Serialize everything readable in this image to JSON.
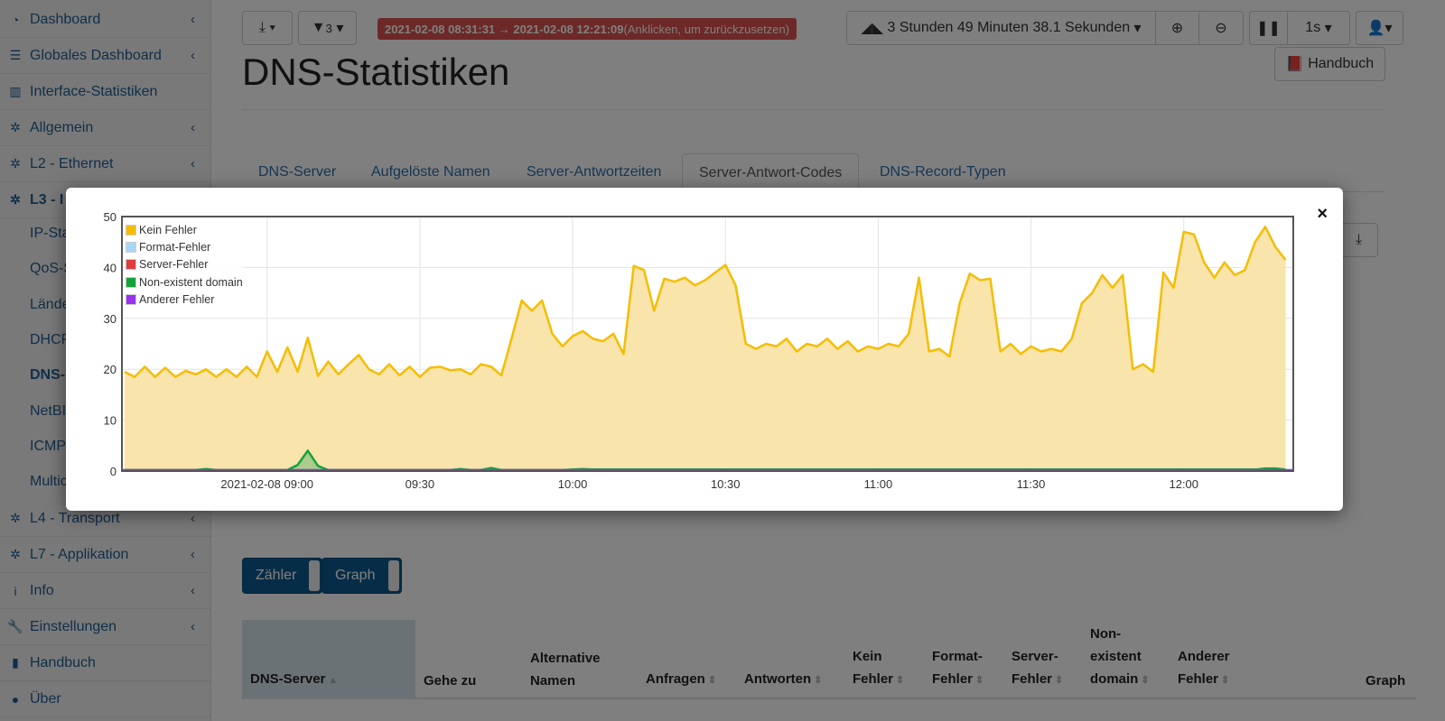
{
  "sidebar": {
    "items": [
      {
        "label": "Dashboard",
        "icon": "dashboard-icon",
        "chev": true
      },
      {
        "label": "Globales Dashboard",
        "icon": "server-icon",
        "chev": true
      },
      {
        "label": "Interface-Statistiken",
        "icon": "bar-chart-icon",
        "chev": false
      },
      {
        "label": "Allgemein",
        "icon": "gear-icon",
        "chev": true
      },
      {
        "label": "L2 - Ethernet",
        "icon": "gear-icon",
        "chev": true
      },
      {
        "label": "L3 - I",
        "icon": "gear-icon",
        "chev": false
      },
      {
        "label": "L4 - Transport",
        "icon": "gear-icon",
        "chev": true
      },
      {
        "label": "L7 - Applikation",
        "icon": "gear-icon",
        "chev": true
      },
      {
        "label": "Info",
        "icon": "info-icon",
        "chev": true
      },
      {
        "label": "Einstellungen",
        "icon": "wrench-icon",
        "chev": true
      },
      {
        "label": "Handbuch",
        "icon": "book-icon",
        "chev": false
      },
      {
        "label": "Über",
        "icon": "info-circle-icon",
        "chev": false
      }
    ],
    "subitems": [
      "IP-Sta",
      "QoS-S",
      "Lände",
      "DHCP",
      "DNS-",
      "NetBI",
      "ICMP",
      "Multic"
    ]
  },
  "toolbar": {
    "filter_count": "3",
    "range": "2021-02-08 08:31:31 → 2021-02-08 12:21:09",
    "range_hint": "(Anklicken, um zurückzusetzen)",
    "duration": "3 Stunden 49 Minuten 38.1 Sekunden",
    "refresh": "1s"
  },
  "page": {
    "title": "DNS-Statistiken",
    "manual": "Handbuch"
  },
  "tabs": [
    "DNS-Server",
    "Aufgelöste Namen",
    "Server-Antwortzeiten",
    "Server-Antwort-Codes",
    "DNS-Record-Typen"
  ],
  "toggles": [
    "Zähler",
    "Graph"
  ],
  "table": {
    "headers": [
      "DNS-Server",
      "Gehe zu",
      "Alternative Namen",
      "Anfragen",
      "Antworten",
      "Kein Fehler",
      "Format-Fehler",
      "Server-Fehler",
      "Non-existent domain",
      "Anderer Fehler",
      "Graph"
    ]
  },
  "modal": {
    "close": "×"
  },
  "chart_data": {
    "type": "area",
    "ylim": [
      0,
      50
    ],
    "yticks": [
      "0",
      "10",
      "20",
      "30",
      "40",
      "50"
    ],
    "xlabels": [
      {
        "t": 60,
        "label": "2021-02-08 09:00"
      },
      {
        "t": 90,
        "label": "09:30"
      },
      {
        "t": 120,
        "label": "10:00"
      },
      {
        "t": 150,
        "label": "10:30"
      },
      {
        "t": 180,
        "label": "11:00"
      },
      {
        "t": 210,
        "label": "11:30"
      },
      {
        "t": 240,
        "label": "12:00"
      }
    ],
    "x_range_minutes_after_0800": [
      31.5,
      261.5
    ],
    "x_start": 32,
    "x_step": 2,
    "legend_position": "top-left",
    "series": [
      {
        "name": "Kein Fehler",
        "color": "#f5bd00",
        "fill": "#f9e3a6",
        "values": [
          19.5,
          18.5,
          20.5,
          18.5,
          20.3,
          18.5,
          19.7,
          19,
          20,
          18.5,
          20,
          18.5,
          20.5,
          18.5,
          23.5,
          19.5,
          24.3,
          19.5,
          26.2,
          18.7,
          21.5,
          19,
          21,
          22.8,
          20,
          19,
          21,
          18.8,
          20.5,
          18.5,
          20.3,
          20.5,
          19.8,
          20,
          19,
          21,
          20.5,
          18.8,
          26,
          33.5,
          31.5,
          33.5,
          27,
          24.5,
          26.5,
          27.5,
          26,
          25.5,
          27,
          23,
          40.3,
          39.5,
          31.5,
          37.8,
          37.2,
          38,
          36.5,
          37.5,
          39,
          40.5,
          36.5,
          25,
          24,
          25,
          24.5,
          26,
          23.5,
          25,
          24.5,
          26,
          24,
          25.5,
          23.5,
          24.5,
          24,
          25,
          24.5,
          27,
          38,
          23.5,
          24,
          22.5,
          33,
          38.8,
          37.5,
          37.8,
          23.5,
          25,
          23,
          24.5,
          23.5,
          24,
          23.5,
          26,
          33,
          35,
          38.5,
          36,
          38.5,
          20,
          21,
          19.5,
          39,
          36,
          47,
          46.5,
          41,
          38,
          41,
          38.5,
          39.5,
          45,
          48,
          44,
          41.5
        ]
      },
      {
        "name": "Format-Fehler",
        "color": "#a8d8f5",
        "values": []
      },
      {
        "name": "Server-Fehler",
        "color": "#e03c3c",
        "values": []
      },
      {
        "name": "Non-existent domain",
        "color": "#13a33a",
        "fill": "#a8c98a",
        "values": [
          0.2,
          0.2,
          0.2,
          0.2,
          0.2,
          0.2,
          0.2,
          0.2,
          0.4,
          0.2,
          0.2,
          0.2,
          0.2,
          0.2,
          0.2,
          0.2,
          0.2,
          1.2,
          4,
          1,
          0.2,
          0.2,
          0.2,
          0.2,
          0.2,
          0.2,
          0.2,
          0.2,
          0.2,
          0.2,
          0.2,
          0.2,
          0.2,
          0.4,
          0.2,
          0.2,
          0.6,
          0.2,
          0.2,
          0.2,
          0.2,
          0.2,
          0.2,
          0.2,
          0.3,
          0.4,
          0.3,
          0.3,
          0.3,
          0.3,
          0.3,
          0.3,
          0.3,
          0.3,
          0.3,
          0.3,
          0.3,
          0.3,
          0.3,
          0.3,
          0.3,
          0.3,
          0.3,
          0.3,
          0.3,
          0.3,
          0.3,
          0.3,
          0.3,
          0.3,
          0.3,
          0.3,
          0.3,
          0.3,
          0.3,
          0.3,
          0.3,
          0.3,
          0.3,
          0.3,
          0.3,
          0.3,
          0.3,
          0.3,
          0.3,
          0.3,
          0.3,
          0.3,
          0.3,
          0.3,
          0.3,
          0.3,
          0.3,
          0.3,
          0.3,
          0.3,
          0.3,
          0.3,
          0.3,
          0.3,
          0.3,
          0.3,
          0.3,
          0.3,
          0.3,
          0.3,
          0.3,
          0.3,
          0.3,
          0.3,
          0.3,
          0.3,
          0.5,
          0.5,
          0.3
        ]
      },
      {
        "name": "Anderer Fehler",
        "color": "#9b30f0",
        "values": []
      }
    ]
  }
}
